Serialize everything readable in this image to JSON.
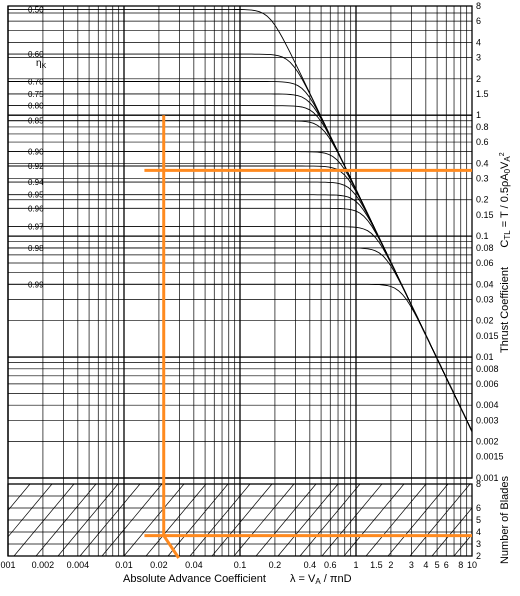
{
  "chart_data": {
    "type": "line",
    "xlabel": "Absolute Advance Coefficient",
    "xlabel_formula": "λ = V_A / πnD",
    "ylabel": "Thrust Coefficient",
    "ylabel_formula": "C_TL = T / 0.5ρA_0V_A²",
    "blades_label": "Number of Blades",
    "eta_symbol": "η_K",
    "x_scale": "log",
    "y_scale": "log",
    "xlim": [
      0.001,
      10
    ],
    "ylim": [
      0.001,
      8
    ],
    "x_ticks": [
      "001",
      "0.002",
      "0.004",
      "0.01",
      "0.02",
      "0.04",
      "0.1",
      "0.2",
      "0.4",
      "0.6",
      "1",
      "1.5",
      "2",
      "3",
      "4",
      "5",
      "6",
      "8",
      "10"
    ],
    "y_ticks": [
      "8",
      "6",
      "4",
      "3",
      "2",
      "1.5",
      "1",
      "0.8",
      "0.6",
      "0.4",
      "0.3",
      "0.2",
      "0.15",
      "0.1",
      "0.08",
      "0.06",
      "0.04",
      "0.03",
      "0.02",
      "0.015",
      "0.01",
      "0.008",
      "0.006",
      "0.004",
      "0.003",
      "0.002",
      "0.0015",
      "0.001"
    ],
    "blade_ticks": [
      "8",
      "6",
      "5",
      "4",
      "3",
      "2"
    ],
    "eta_labels": [
      "0.50",
      "0.60",
      "0.70",
      "0.75",
      "0.80",
      "0.85",
      "0.90",
      "0.92",
      "0.94",
      "0.95",
      "0.96",
      "0.97",
      "0.98",
      "0.99"
    ],
    "series": [
      {
        "name": "0.50",
        "values": [
          0.5,
          7.5
        ]
      },
      {
        "name": "0.60",
        "values": [
          0.4,
          3.2
        ]
      },
      {
        "name": "0.70",
        "values": [
          0.35,
          1.9
        ]
      },
      {
        "name": "0.75",
        "values": [
          0.3,
          1.5
        ]
      },
      {
        "name": "0.80",
        "values": [
          0.26,
          1.2
        ]
      },
      {
        "name": "0.85",
        "values": [
          0.22,
          0.9
        ]
      },
      {
        "name": "0.90",
        "values": [
          0.18,
          0.5
        ]
      },
      {
        "name": "0.92",
        "values": [
          0.16,
          0.38
        ]
      },
      {
        "name": "0.94",
        "values": [
          0.14,
          0.28
        ]
      },
      {
        "name": "0.95",
        "values": [
          0.12,
          0.22
        ]
      },
      {
        "name": "0.96",
        "values": [
          0.1,
          0.17
        ]
      },
      {
        "name": "0.97",
        "values": [
          0.08,
          0.12
        ]
      },
      {
        "name": "0.98",
        "values": [
          0.06,
          0.08
        ]
      },
      {
        "name": "0.99",
        "values": [
          0.03,
          0.04
        ]
      }
    ],
    "annotations": [
      {
        "type": "vertical",
        "x": 0.022
      },
      {
        "type": "horizontal",
        "y": 0.35
      },
      {
        "type": "horizontal_blades",
        "blades": 3.7
      }
    ],
    "grid": true
  }
}
